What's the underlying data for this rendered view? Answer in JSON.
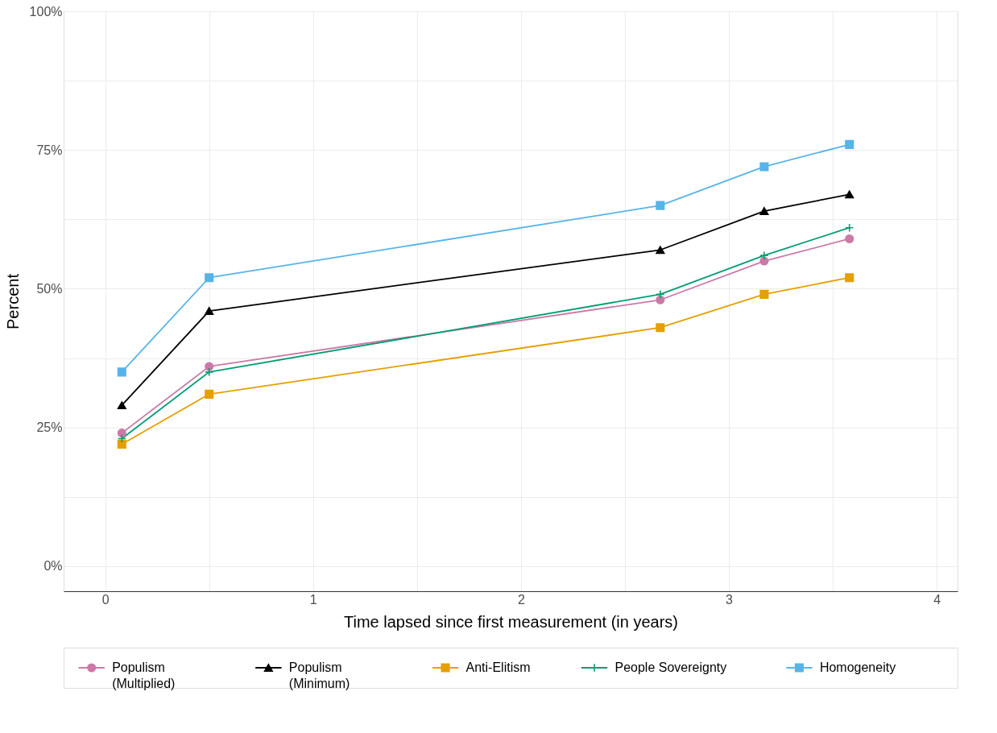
{
  "chart_data": {
    "type": "line",
    "xlabel": "Time lapsed since first measurement (in years)",
    "ylabel": "Percent",
    "x": [
      0.08,
      0.5,
      2.67,
      3.17,
      3.58
    ],
    "series": [
      {
        "name": "Populism\n(Multiplied)",
        "color": "#cc79a7",
        "marker": "circle",
        "values": [
          24,
          36,
          48,
          55,
          59
        ]
      },
      {
        "name": "Populism\n(Minimum)",
        "color": "#000000",
        "marker": "triangle",
        "values": [
          29,
          46,
          57,
          64,
          67
        ]
      },
      {
        "name": "Anti-Elitism",
        "color": "#e69f00",
        "marker": "square",
        "values": [
          22,
          31,
          43,
          49,
          52
        ]
      },
      {
        "name": "People Sovereignty",
        "color": "#009e73",
        "marker": "cross",
        "values": [
          23,
          35,
          49,
          56,
          61
        ]
      },
      {
        "name": "Homogeneity",
        "color": "#56b4e9",
        "marker": "square",
        "values": [
          35,
          52,
          65,
          72,
          76
        ]
      }
    ],
    "xlim": [
      -0.2,
      4.1
    ],
    "ylim": [
      -4.5,
      100
    ],
    "xticks": [
      0,
      {
        "value": 0.5,
        "label": null
      },
      1,
      {
        "value": 1.5,
        "label": null
      },
      2,
      {
        "value": 2.5,
        "label": null
      },
      3,
      {
        "value": 3.5,
        "label": null
      },
      4
    ],
    "yticks": [
      {
        "value": 0,
        "label": "0%"
      },
      {
        "value": 12.5,
        "label": null
      },
      {
        "value": 25,
        "label": "25%"
      },
      {
        "value": 37.5,
        "label": null
      },
      {
        "value": 50,
        "label": "50%"
      },
      {
        "value": 62.5,
        "label": null
      },
      {
        "value": 75,
        "label": "75%"
      },
      {
        "value": 87.5,
        "label": null
      },
      {
        "value": 100,
        "label": "100%"
      }
    ],
    "grid": true,
    "legend": "bottom",
    "line_style": "solid"
  }
}
